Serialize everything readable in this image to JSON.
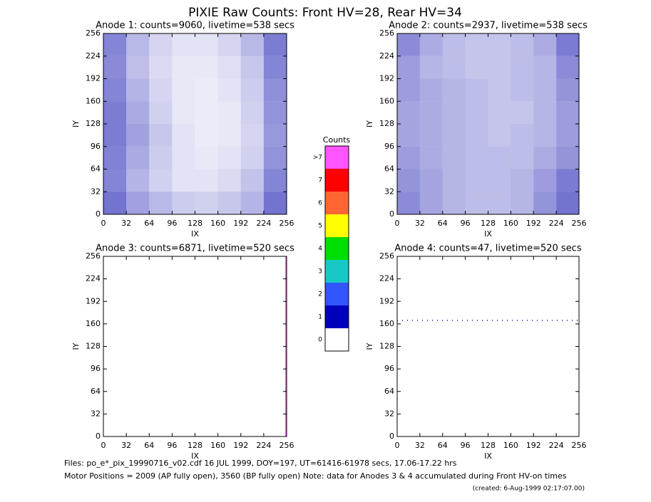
{
  "title": "PIXIE Raw Counts:  Front HV=28, Rear HV=34",
  "chart_data": [
    {
      "type": "heatmap",
      "title": "Anode 1: counts=9060, livetime=538 secs",
      "xlabel": "IX",
      "ylabel": "IY",
      "xlim": [
        0,
        256
      ],
      "ylim": [
        0,
        256
      ],
      "xticks": [
        0,
        32,
        64,
        96,
        128,
        160,
        192,
        224,
        256
      ],
      "yticks": [
        0,
        32,
        64,
        96,
        128,
        160,
        192,
        224,
        256
      ],
      "color": "#0000aa",
      "density": [
        [
          260,
          150,
          90,
          60,
          60,
          90,
          150,
          280
        ],
        [
          250,
          140,
          80,
          50,
          50,
          70,
          120,
          260
        ],
        [
          260,
          160,
          90,
          50,
          40,
          60,
          110,
          240
        ],
        [
          280,
          180,
          100,
          50,
          40,
          50,
          100,
          230
        ],
        [
          280,
          200,
          120,
          60,
          40,
          50,
          90,
          220
        ],
        [
          270,
          180,
          110,
          60,
          50,
          60,
          100,
          230
        ],
        [
          260,
          160,
          100,
          60,
          60,
          80,
          130,
          260
        ],
        [
          300,
          200,
          150,
          110,
          100,
          120,
          160,
          300
        ]
      ]
    },
    {
      "type": "heatmap",
      "title": "Anode 2: counts=2937, livetime=538 secs",
      "xlabel": "IX",
      "ylabel": "IY",
      "xlim": [
        0,
        256
      ],
      "ylim": [
        0,
        256
      ],
      "xticks": [
        0,
        32,
        64,
        96,
        128,
        160,
        192,
        224,
        256
      ],
      "yticks": [
        0,
        32,
        64,
        96,
        128,
        160,
        192,
        224,
        256
      ],
      "color": "#0000aa",
      "density": [
        [
          70,
          50,
          40,
          35,
          35,
          40,
          50,
          80
        ],
        [
          60,
          45,
          40,
          35,
          35,
          40,
          45,
          70
        ],
        [
          60,
          50,
          45,
          40,
          35,
          40,
          45,
          65
        ],
        [
          55,
          50,
          45,
          40,
          35,
          35,
          45,
          60
        ],
        [
          55,
          50,
          45,
          40,
          35,
          40,
          45,
          60
        ],
        [
          60,
          50,
          45,
          40,
          40,
          40,
          50,
          65
        ],
        [
          65,
          55,
          45,
          40,
          40,
          45,
          60,
          80
        ],
        [
          70,
          55,
          45,
          40,
          40,
          45,
          65,
          85
        ]
      ]
    },
    {
      "type": "vline",
      "title": "Anode 3: counts=6871, livetime=520 secs",
      "xlabel": "IX",
      "ylabel": "IY",
      "xlim": [
        0,
        256
      ],
      "ylim": [
        0,
        256
      ],
      "xticks": [
        0,
        32,
        64,
        96,
        128,
        160,
        192,
        224,
        256
      ],
      "yticks": [
        0,
        32,
        64,
        96,
        128,
        160,
        192,
        224,
        256
      ],
      "color": "#ff55ff",
      "line_x": 255
    },
    {
      "type": "hline",
      "title": "Anode 4: counts=47, livetime=520 secs",
      "xlabel": "IX",
      "ylabel": "IY",
      "xlim": [
        0,
        256
      ],
      "ylim": [
        0,
        256
      ],
      "xticks": [
        0,
        32,
        64,
        96,
        128,
        160,
        192,
        224,
        256
      ],
      "yticks": [
        0,
        32,
        64,
        96,
        128,
        160,
        192,
        224,
        256
      ],
      "color": "#0000aa",
      "line_y": 165
    }
  ],
  "colorbar": {
    "title": "Counts",
    "categories": [
      "0",
      "1",
      "2",
      "3",
      "4",
      "5",
      "6",
      "7",
      ">7"
    ],
    "colors": [
      "#ffffff",
      "#0000bb",
      "#3355ff",
      "#18c8c8",
      "#00dd00",
      "#ffff00",
      "#ff6633",
      "#ff0000",
      "#ff55ff"
    ]
  },
  "footer": [
    "Files: po_e*_pix_19990716_v02.cdf    16 JUL 1999, DOY=197, UT=61416-61978 secs, 17.06-17.22 hrs",
    "Motor Positions = 2009 (AP fully open), 3560 (BP fully open)    Note: data for Anodes 3 & 4 accumulated during Front HV-on times",
    "(created:  6-Aug-1999 02:17:07.00)"
  ]
}
